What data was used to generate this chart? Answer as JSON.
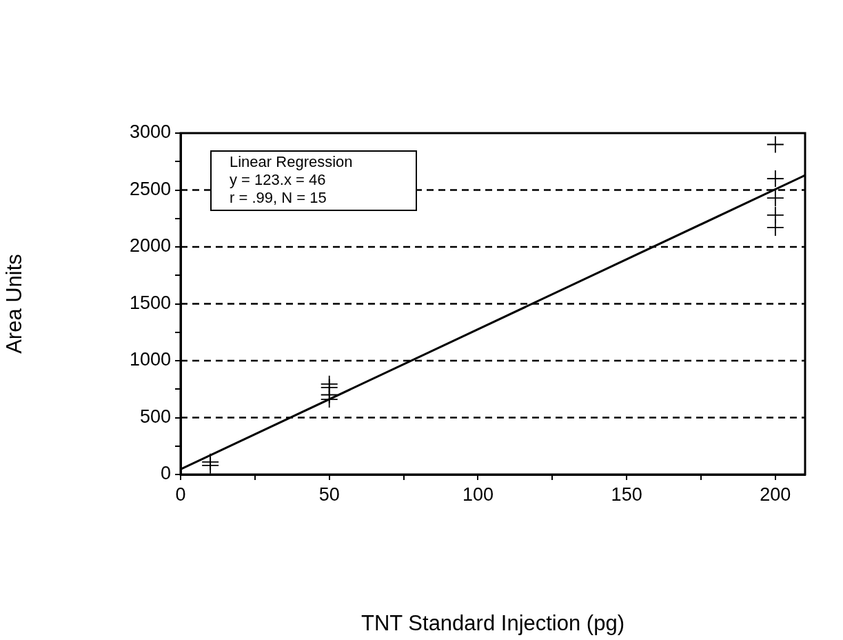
{
  "chart_data": {
    "type": "scatter",
    "xlabel": "TNT Standard Injection (pg)",
    "ylabel": "Area Units",
    "annotations": [
      "Linear Regression",
      "y = 123.x = 46",
      "r = .99, N = 15"
    ],
    "xlim": [
      0,
      210
    ],
    "ylim": [
      0,
      3000
    ],
    "xticks": [
      0,
      {
        "value": 25,
        "label": null
      },
      50,
      {
        "value": 75,
        "label": null
      },
      100,
      {
        "value": 125,
        "label": null
      },
      150,
      {
        "value": 175,
        "label": null
      },
      200
    ],
    "yticks": [
      0,
      {
        "value": 250,
        "label": null
      },
      500,
      {
        "value": 750,
        "label": null
      },
      1000,
      {
        "value": 1250,
        "label": null
      },
      1500,
      {
        "value": 1750,
        "label": null
      },
      2000,
      {
        "value": 2250,
        "label": null
      },
      2500,
      {
        "value": 2750,
        "label": null
      },
      3000
    ],
    "grid": "y",
    "legend": false,
    "series": [
      {
        "type": "scatter",
        "color": "#000000",
        "marker": "cross",
        "x": [
          10,
          10,
          50,
          50,
          50,
          50,
          200,
          200,
          200,
          200,
          200
        ],
        "values": [
          110,
          80,
          795,
          765,
          700,
          660,
          2900,
          2600,
          2430,
          2280,
          2170
        ]
      },
      {
        "type": "line",
        "color": "#000000",
        "marker": "none",
        "line_style": "solid",
        "x": [
          0,
          210
        ],
        "values": [
          46,
          2629
        ]
      }
    ]
  }
}
